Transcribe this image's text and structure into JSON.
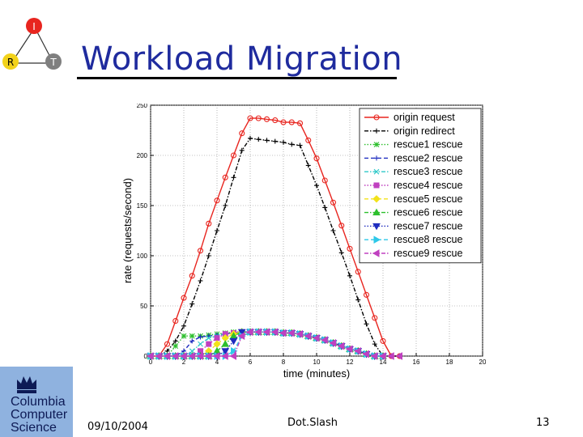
{
  "slide": {
    "title": "Workload Migration",
    "date": "09/10/2004",
    "footer_center": "Dot.Slash",
    "page_number": "13"
  },
  "logo_rit": {
    "letters": [
      "I",
      "R",
      "T"
    ],
    "colors": [
      "#e8251f",
      "#f2d21a",
      "#7f7f7f"
    ]
  },
  "university_logo": {
    "lines": [
      "Columbia",
      "Computer",
      "Science"
    ],
    "color": "#8fb2df"
  },
  "chart_data": {
    "type": "line",
    "xlabel": "time (minutes)",
    "ylabel": "rate (requests/second)",
    "xlim": [
      0,
      20
    ],
    "ylim": [
      0,
      250
    ],
    "xticks": [
      0,
      2,
      4,
      6,
      8,
      10,
      12,
      14,
      16,
      18,
      20
    ],
    "yticks": [
      0,
      50,
      100,
      150,
      200,
      250
    ],
    "grid": true,
    "legend_position": "top-right",
    "series": [
      {
        "name": "origin request",
        "color": "#e8251f",
        "marker": "circle",
        "dash": "solid",
        "x": [
          0,
          0.5,
          1,
          1.5,
          2,
          2.5,
          3,
          3.5,
          4,
          4.5,
          5,
          5.5,
          6,
          6.5,
          7,
          7.5,
          8,
          8.5,
          9,
          9.5,
          10,
          10.5,
          11,
          11.5,
          12,
          12.5,
          13,
          13.5,
          14,
          14.5,
          15
        ],
        "y": [
          0,
          0,
          12,
          35,
          58,
          80,
          105,
          132,
          155,
          178,
          200,
          222,
          237,
          237,
          236,
          235,
          233,
          233,
          232,
          215,
          197,
          175,
          153,
          130,
          107,
          84,
          61,
          38,
          15,
          0,
          0
        ]
      },
      {
        "name": "origin redirect",
        "color": "#000000",
        "marker": "plus",
        "dash": "dashdot",
        "x": [
          0,
          0.5,
          1,
          1.5,
          2,
          2.5,
          3,
          3.5,
          4,
          4.5,
          5,
          5.5,
          6,
          6.5,
          7,
          7.5,
          8,
          8.5,
          9,
          9.5,
          10,
          10.5,
          11,
          11.5,
          12,
          12.5,
          13,
          13.5,
          14,
          14.5,
          15
        ],
        "y": [
          0,
          0,
          5,
          15,
          30,
          52,
          75,
          100,
          125,
          150,
          178,
          205,
          217,
          216,
          215,
          214,
          213,
          211,
          210,
          190,
          170,
          148,
          125,
          103,
          80,
          56,
          32,
          12,
          0,
          0,
          0
        ]
      },
      {
        "name": "rescue1 rescue",
        "color": "#2dbf2d",
        "marker": "star",
        "dash": "dot",
        "x": [
          0,
          0.5,
          1,
          1.5,
          2,
          2.5,
          3,
          3.5,
          4,
          4.5,
          5,
          5.5,
          6,
          6.5,
          7,
          7.5,
          8,
          8.5,
          9,
          9.5,
          10,
          10.5,
          11,
          11.5,
          12,
          12.5,
          13,
          13.5,
          14
        ],
        "y": [
          0,
          0,
          0,
          10,
          20,
          20,
          20,
          21,
          22,
          23,
          24,
          24,
          24,
          24,
          24,
          24,
          23,
          23,
          22,
          20,
          18,
          16,
          13,
          10,
          7,
          5,
          2,
          0,
          0
        ]
      },
      {
        "name": "rescue2 rescue",
        "color": "#1f2dbf",
        "marker": "plus",
        "dash": "dashed",
        "x": [
          0,
          0.5,
          1,
          1.5,
          2,
          2.5,
          3,
          3.5,
          4,
          4.5,
          5,
          5.5,
          6,
          6.5,
          7,
          7.5,
          8,
          8.5,
          9,
          9.5,
          10,
          10.5,
          11,
          11.5,
          12,
          12.5,
          13,
          13.5,
          14
        ],
        "y": [
          0,
          0,
          0,
          0,
          5,
          15,
          19,
          20,
          21,
          22,
          23,
          24,
          24,
          24,
          24,
          24,
          23,
          23,
          22,
          20,
          18,
          16,
          13,
          10,
          7,
          5,
          2,
          0,
          0
        ]
      },
      {
        "name": "rescue3 rescue",
        "color": "#2ec8c8",
        "marker": "x",
        "dash": "dashdot",
        "x": [
          0,
          0.5,
          1,
          1.5,
          2,
          2.5,
          3,
          3.5,
          4,
          4.5,
          5,
          5.5,
          6,
          6.5,
          7,
          7.5,
          8,
          8.5,
          9,
          9.5,
          10,
          10.5,
          11,
          11.5,
          12,
          12.5,
          13,
          13.5,
          14
        ],
        "y": [
          0,
          0,
          0,
          0,
          0,
          5,
          12,
          18,
          20,
          22,
          23,
          24,
          24,
          24,
          24,
          24,
          23,
          23,
          22,
          20,
          18,
          16,
          13,
          10,
          7,
          5,
          2,
          0,
          0
        ]
      },
      {
        "name": "rescue4 rescue",
        "color": "#c040c0",
        "marker": "square",
        "dash": "dot",
        "x": [
          0,
          0.5,
          1,
          1.5,
          2,
          2.5,
          3,
          3.5,
          4,
          4.5,
          5,
          5.5,
          6,
          6.5,
          7,
          7.5,
          8,
          8.5,
          9,
          9.5,
          10,
          10.5,
          11,
          11.5,
          12,
          12.5,
          13,
          13.5,
          14
        ],
        "y": [
          0,
          0,
          0,
          0,
          0,
          0,
          5,
          12,
          18,
          22,
          23,
          24,
          24,
          24,
          24,
          24,
          23,
          23,
          22,
          20,
          18,
          16,
          13,
          10,
          7,
          5,
          2,
          0,
          0
        ]
      },
      {
        "name": "rescue5 rescue",
        "color": "#f2e21a",
        "marker": "diamond",
        "dash": "dashed",
        "x": [
          0,
          0.5,
          1,
          1.5,
          2,
          2.5,
          3,
          3.5,
          4,
          4.5,
          5,
          5.5,
          6,
          6.5,
          7,
          7.5,
          8,
          8.5,
          9,
          9.5,
          10,
          10.5,
          11,
          11.5,
          12,
          12.5,
          13,
          13.5,
          14
        ],
        "y": [
          0,
          0,
          0,
          0,
          0,
          0,
          0,
          5,
          12,
          18,
          22,
          24,
          24,
          24,
          24,
          24,
          23,
          23,
          22,
          20,
          18,
          16,
          13,
          10,
          7,
          5,
          2,
          0,
          0
        ]
      },
      {
        "name": "rescue6 rescue",
        "color": "#2dbf2d",
        "marker": "triangle-up",
        "dash": "dashdot",
        "x": [
          0,
          0.5,
          1,
          1.5,
          2,
          2.5,
          3,
          3.5,
          4,
          4.5,
          5,
          5.5,
          6,
          6.5,
          7,
          7.5,
          8,
          8.5,
          9,
          9.5,
          10,
          10.5,
          11,
          11.5,
          12,
          12.5,
          13,
          13.5,
          14
        ],
        "y": [
          0,
          0,
          0,
          0,
          0,
          0,
          0,
          0,
          5,
          12,
          20,
          24,
          24,
          24,
          24,
          24,
          23,
          23,
          22,
          20,
          18,
          16,
          13,
          10,
          7,
          5,
          2,
          0,
          0
        ]
      },
      {
        "name": "rescue7 rescue",
        "color": "#1f2dbf",
        "marker": "triangle-down",
        "dash": "dot",
        "x": [
          0,
          0.5,
          1,
          1.5,
          2,
          2.5,
          3,
          3.5,
          4,
          4.5,
          5,
          5.5,
          6,
          6.5,
          7,
          7.5,
          8,
          8.5,
          9,
          9.5,
          10,
          10.5,
          11,
          11.5,
          12,
          12.5,
          13,
          13.5,
          14
        ],
        "y": [
          0,
          0,
          0,
          0,
          0,
          0,
          0,
          0,
          0,
          5,
          15,
          24,
          24,
          24,
          24,
          24,
          23,
          23,
          22,
          20,
          18,
          16,
          13,
          10,
          7,
          5,
          2,
          0,
          0
        ]
      },
      {
        "name": "rescue8 rescue",
        "color": "#2ec8e8",
        "marker": "triangle-right",
        "dash": "dashed",
        "x": [
          0,
          0.5,
          1,
          1.5,
          2,
          2.5,
          3,
          3.5,
          4,
          4.5,
          5,
          5.5,
          6,
          6.5,
          7,
          7.5,
          8,
          8.5,
          9,
          9.5,
          10,
          10.5,
          11,
          11.5,
          12,
          12.5,
          13,
          13.5,
          14
        ],
        "y": [
          0,
          0,
          0,
          0,
          0,
          0,
          0,
          0,
          0,
          0,
          5,
          20,
          24,
          24,
          24,
          24,
          23,
          23,
          22,
          20,
          18,
          16,
          13,
          10,
          7,
          5,
          2,
          0,
          0
        ]
      },
      {
        "name": "rescue9 rescue",
        "color": "#c040c0",
        "marker": "triangle-left",
        "dash": "dashdot",
        "x": [
          0,
          0.5,
          1,
          1.5,
          2,
          2.5,
          3,
          3.5,
          4,
          4.5,
          5,
          5.5,
          6,
          6.5,
          7,
          7.5,
          8,
          8.5,
          9,
          9.5,
          10,
          10.5,
          11,
          11.5,
          12,
          12.5,
          13,
          13.5,
          14,
          14.5,
          15
        ],
        "y": [
          0,
          0,
          0,
          0,
          0,
          0,
          0,
          0,
          0,
          0,
          0,
          20,
          24,
          24,
          24,
          24,
          23,
          23,
          22,
          20,
          18,
          16,
          13,
          10,
          7,
          5,
          2,
          0,
          0,
          0,
          0
        ]
      }
    ]
  }
}
